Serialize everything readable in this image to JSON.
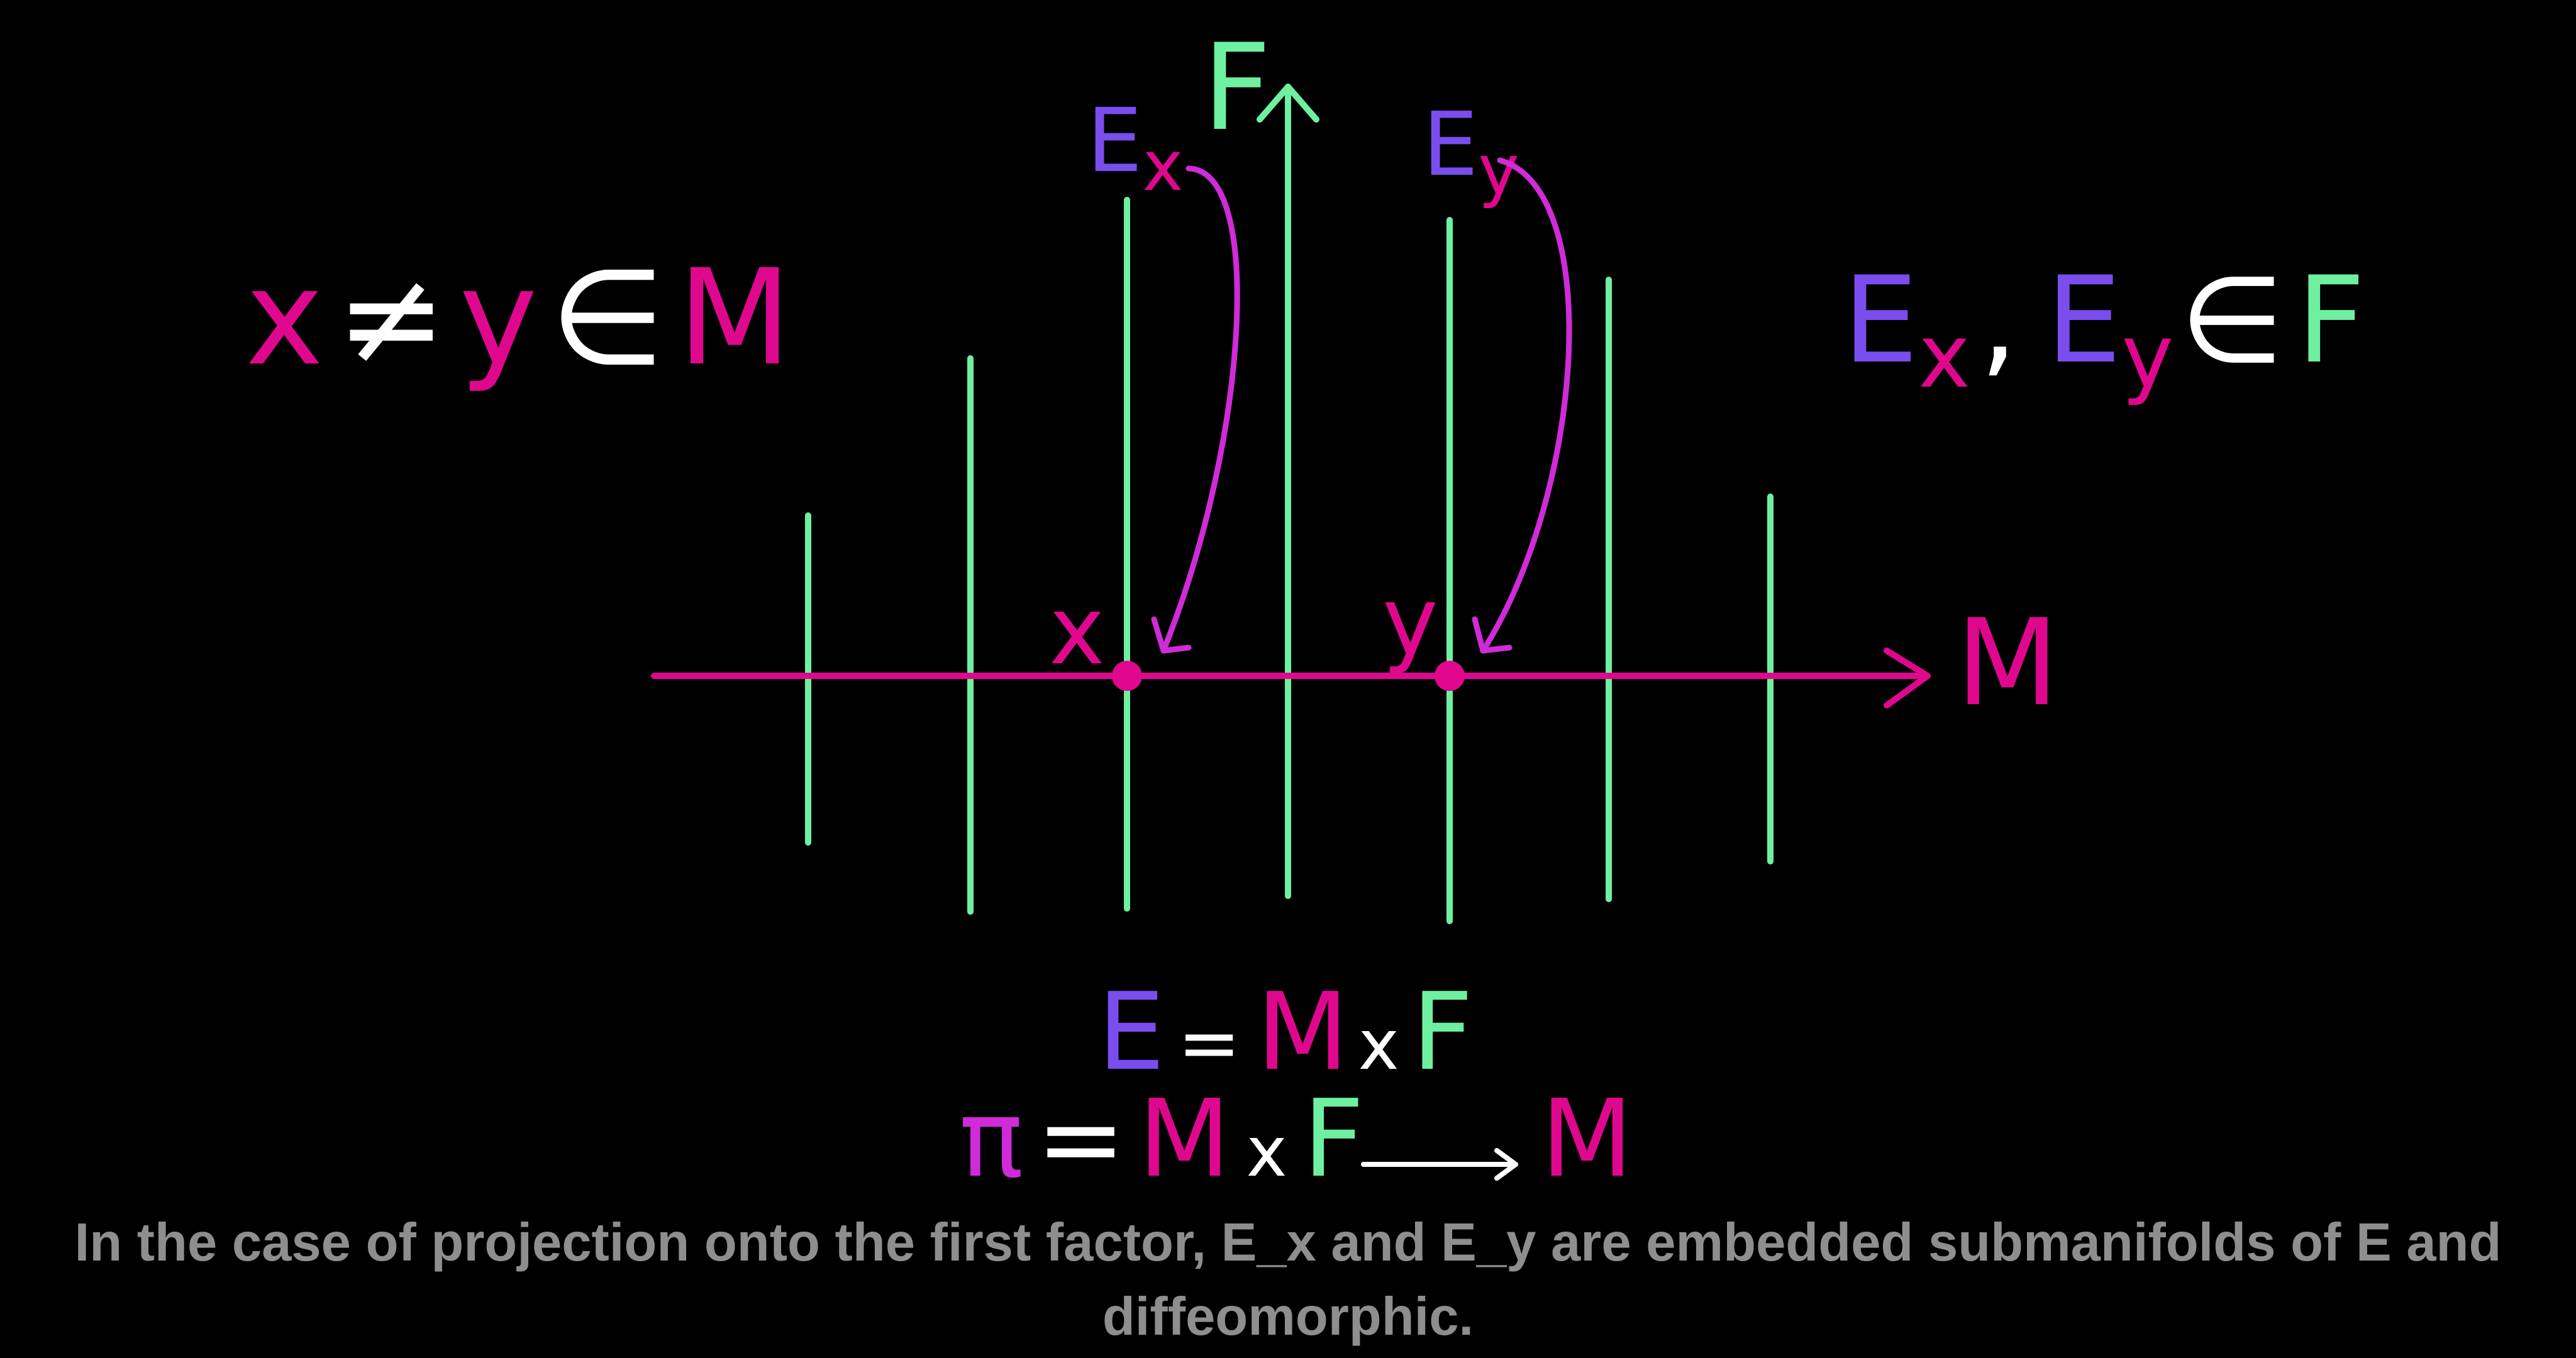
{
  "colors": {
    "background": "#000000",
    "fiber": "#6ef0a0",
    "base": "#e0078f",
    "fiber_label": "#7a4dee",
    "arrow": "#d02bd8",
    "white": "#ffffff",
    "caption": "#8e8e8e"
  },
  "diagram": {
    "fiber_axis_label": "F",
    "base_axis_label": "M",
    "point_x_label": "x",
    "point_y_label": "y",
    "fiber_ex": {
      "letter": "E",
      "sub": "x"
    },
    "fiber_ey": {
      "letter": "E",
      "sub": "y"
    }
  },
  "statement_left": {
    "x": "x",
    "neq": "≠",
    "y": "y",
    "in": "∈",
    "M": "M"
  },
  "statement_right": {
    "Ex": {
      "letter": "E",
      "sub": "x"
    },
    "comma": ",",
    "Ey": {
      "letter": "E",
      "sub": "y"
    },
    "in": "∈",
    "F": "F"
  },
  "equation_1": {
    "E": "E",
    "eq": "=",
    "M": "M",
    "times": "x",
    "F": "F"
  },
  "equation_2": {
    "pi": "π",
    "eq": "=",
    "M": "M",
    "times": "x",
    "F": "F",
    "target": "M"
  },
  "caption": {
    "line1": "In the case of projection onto the first factor, E_x and E_y are embedded submanifolds of E and",
    "line2": "diffeomorphic."
  }
}
